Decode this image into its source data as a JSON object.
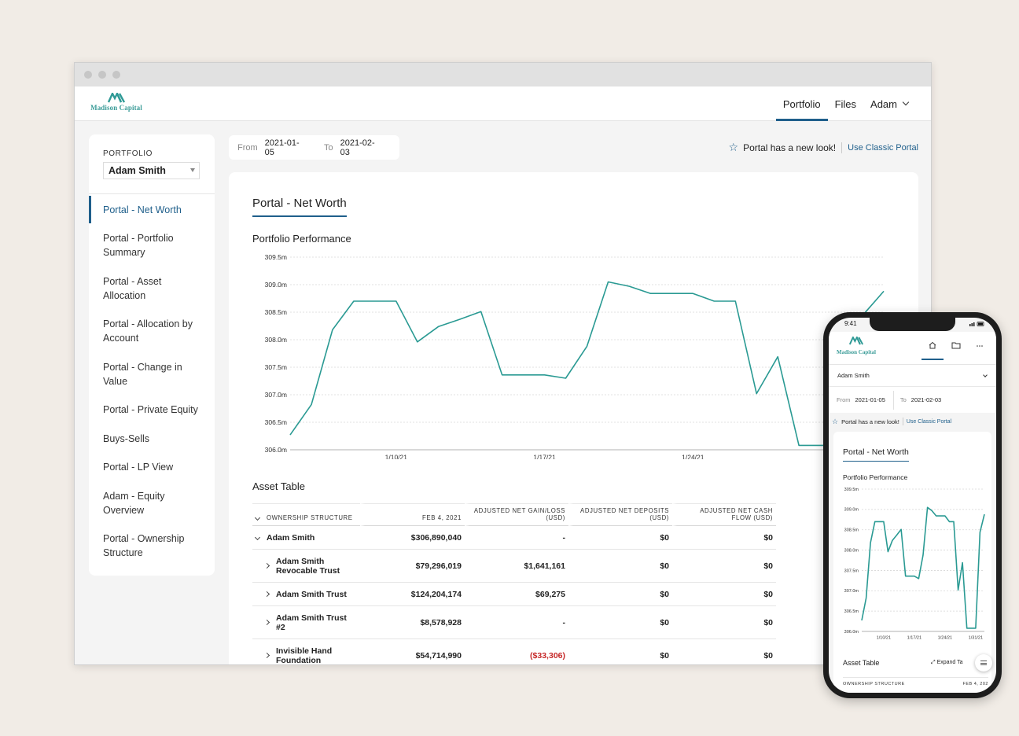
{
  "brand": {
    "name": "Madison Capital",
    "color": "#2f9a96",
    "accent": "#1f5f8b"
  },
  "topnav": {
    "items": [
      "Portfolio",
      "Files"
    ],
    "user": "Adam"
  },
  "sidebar": {
    "label": "PORTFOLIO",
    "selected": "Adam Smith",
    "items": [
      "Portal - Net Worth",
      "Portal - Portfolio Summary",
      "Portal - Asset Allocation",
      "Portal - Allocation by Account",
      "Portal - Change in Value",
      "Portal - Private Equity",
      "Buys-Sells",
      "Portal - LP View",
      "Adam - Equity Overview",
      "Portal - Ownership Structure"
    ]
  },
  "dates": {
    "from_label": "From",
    "from": "2021-01-05",
    "to_label": "To",
    "to": "2021-02-03"
  },
  "notice": {
    "text": "Portal has a new look!",
    "link": "Use Classic Portal"
  },
  "page_title": "Portal - Net Worth",
  "chart_title": "Portfolio Performance",
  "chart_data": {
    "type": "line",
    "y_ticks": [
      "309.5m",
      "309.0m",
      "308.5m",
      "308.0m",
      "307.5m",
      "307.0m",
      "306.5m",
      "306.0m"
    ],
    "ylim": [
      306.0,
      309.5
    ],
    "x_ticks": [
      {
        "label": "1/10/21",
        "day": 10
      },
      {
        "label": "1/17/21",
        "day": 17
      },
      {
        "label": "1/24/21",
        "day": 24
      },
      {
        "label": "1/31/21",
        "day": 31
      }
    ],
    "x_start_day": 5,
    "x_end_day": 33,
    "grid": true,
    "color": "#2a9a93",
    "series": [
      {
        "x": [
          5,
          6,
          7,
          8,
          9,
          10,
          11,
          12,
          13,
          14,
          15,
          16,
          17,
          18,
          19,
          20,
          21,
          22,
          23,
          24,
          25,
          26,
          27,
          28,
          29,
          30,
          31,
          32,
          33
        ],
        "values": [
          306.27,
          306.82,
          308.18,
          308.7,
          308.7,
          308.7,
          307.96,
          308.24,
          308.37,
          308.51,
          307.36,
          307.36,
          307.36,
          307.3,
          307.88,
          309.05,
          308.97,
          308.84,
          308.84,
          308.84,
          308.7,
          308.7,
          307.02,
          307.69,
          306.08,
          306.08,
          306.08,
          308.44,
          308.88
        ]
      }
    ]
  },
  "asset_table": {
    "title": "Asset Table",
    "columns": [
      "OWNERSHIP STRUCTURE",
      "FEB 4, 2021",
      "ADJUSTED NET GAIN/LOSS (USD)",
      "ADJUSTED NET DEPOSITS (USD)",
      "ADJUSTED NET CASH FLOW (USD)"
    ],
    "rows": [
      {
        "name": "Adam Smith",
        "value": "$306,890,040",
        "gain": "-",
        "deposits": "$0",
        "cashflow": "$0",
        "expanded": true,
        "negative": false
      },
      {
        "name": "Adam Smith Revocable Trust",
        "value": "$79,296,019",
        "gain": "$1,641,161",
        "deposits": "$0",
        "cashflow": "$0",
        "expanded": false,
        "negative": false
      },
      {
        "name": "Adam Smith Trust",
        "value": "$124,204,174",
        "gain": "$69,275",
        "deposits": "$0",
        "cashflow": "$0",
        "expanded": false,
        "negative": false
      },
      {
        "name": "Adam Smith Trust #2",
        "value": "$8,578,928",
        "gain": "-",
        "deposits": "$0",
        "cashflow": "$0",
        "expanded": false,
        "negative": false
      },
      {
        "name": "Invisible Hand Foundation",
        "value": "$54,714,990",
        "gain": "($33,306)",
        "deposits": "$0",
        "cashflow": "$0",
        "expanded": false,
        "negative": true
      }
    ]
  },
  "mobile": {
    "time": "9:41",
    "user": "Adam Smith",
    "expand_label": "Expand Ta",
    "table_header_left": "OWNERSHIP STRUCTURE",
    "table_header_right": "FEB 4, 202",
    "chart_y_ticks": [
      "309.5m",
      "309.0m",
      "308.5m",
      "308.0m",
      "307.5m",
      "307.0m",
      "306.5m",
      "306.0m"
    ],
    "chart_x_ticks": [
      "1/10/21",
      "1/17/21",
      "1/24/21",
      "1/31/21"
    ]
  }
}
